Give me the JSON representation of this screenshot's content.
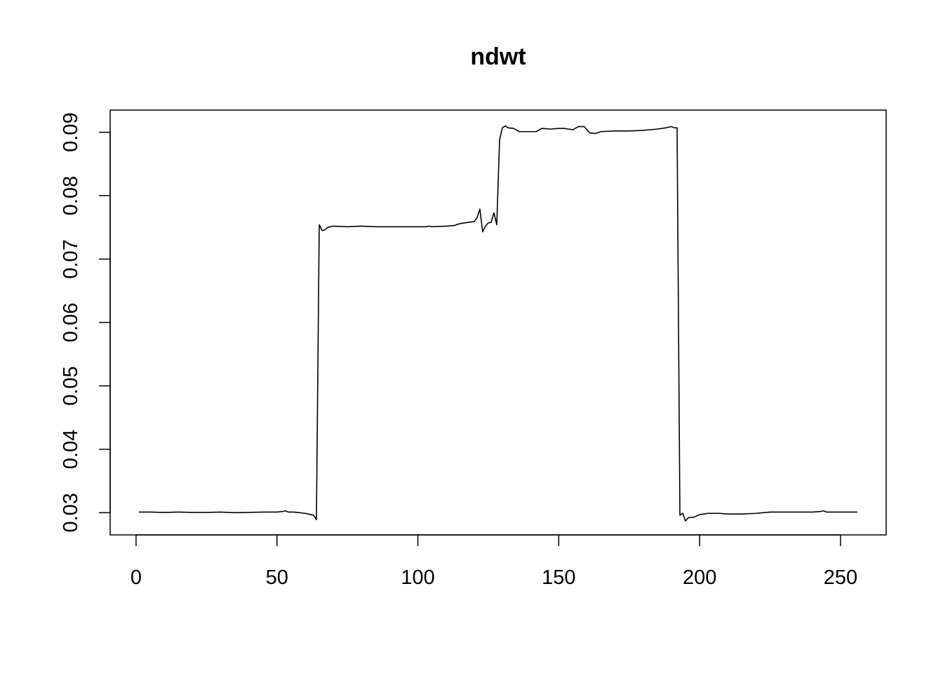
{
  "chart_data": {
    "type": "line",
    "title": "ndwt",
    "xlabel": "",
    "ylabel": "",
    "xlim": [
      -9.2,
      266.2
    ],
    "ylim": [
      0.0265,
      0.0935
    ],
    "x_ticks": [
      0,
      50,
      100,
      150,
      200,
      250
    ],
    "x_tick_labels": [
      "0",
      "50",
      "100",
      "150",
      "200",
      "250"
    ],
    "y_ticks": [
      0.03,
      0.04,
      0.05,
      0.06,
      0.07,
      0.08,
      0.09
    ],
    "y_tick_labels": [
      "0.03",
      "0.04",
      "0.05",
      "0.06",
      "0.07",
      "0.08",
      "0.09"
    ],
    "grid": false,
    "legend": "none",
    "series": [
      {
        "color": "#000000",
        "points": [
          [
            1,
            0.0301
          ],
          [
            5,
            0.0301
          ],
          [
            10,
            0.03005
          ],
          [
            15,
            0.0301
          ],
          [
            20,
            0.03005
          ],
          [
            25,
            0.03005
          ],
          [
            30,
            0.0301
          ],
          [
            35,
            0.03
          ],
          [
            40,
            0.03005
          ],
          [
            45,
            0.0301
          ],
          [
            50,
            0.0301
          ],
          [
            52,
            0.0302
          ],
          [
            53,
            0.0303
          ],
          [
            54,
            0.0301
          ],
          [
            56,
            0.0301
          ],
          [
            58,
            0.03
          ],
          [
            60,
            0.0299
          ],
          [
            62,
            0.0297
          ],
          [
            63,
            0.0296
          ],
          [
            64,
            0.0289
          ],
          [
            65,
            0.0754
          ],
          [
            66,
            0.0745
          ],
          [
            67,
            0.0746
          ],
          [
            68,
            0.075
          ],
          [
            70,
            0.0752
          ],
          [
            75,
            0.0751
          ],
          [
            80,
            0.0752
          ],
          [
            85,
            0.0751
          ],
          [
            90,
            0.0751
          ],
          [
            95,
            0.0751
          ],
          [
            100,
            0.0751
          ],
          [
            103,
            0.0751
          ],
          [
            104,
            0.0752
          ],
          [
            105,
            0.0751
          ],
          [
            110,
            0.0752
          ],
          [
            113,
            0.0753
          ],
          [
            115,
            0.0756
          ],
          [
            118,
            0.0758
          ],
          [
            120,
            0.0759
          ],
          [
            121,
            0.0765
          ],
          [
            122,
            0.0779
          ],
          [
            123,
            0.0743
          ],
          [
            124,
            0.0752
          ],
          [
            125,
            0.0757
          ],
          [
            126,
            0.0758
          ],
          [
            127,
            0.0773
          ],
          [
            128,
            0.0754
          ],
          [
            129,
            0.0888
          ],
          [
            130,
            0.0907
          ],
          [
            131,
            0.091
          ],
          [
            132,
            0.0907
          ],
          [
            134,
            0.0906
          ],
          [
            136,
            0.0901
          ],
          [
            140,
            0.0901
          ],
          [
            142,
            0.0901
          ],
          [
            144,
            0.0906
          ],
          [
            147,
            0.0905
          ],
          [
            150,
            0.0906
          ],
          [
            152,
            0.0906
          ],
          [
            155,
            0.0904
          ],
          [
            157,
            0.0909
          ],
          [
            159,
            0.0909
          ],
          [
            161,
            0.0899
          ],
          [
            163,
            0.0898
          ],
          [
            165,
            0.0901
          ],
          [
            170,
            0.0902
          ],
          [
            175,
            0.0902
          ],
          [
            180,
            0.0903
          ],
          [
            185,
            0.0905
          ],
          [
            188,
            0.0907
          ],
          [
            190,
            0.0909
          ],
          [
            191,
            0.0907
          ],
          [
            192,
            0.0907
          ],
          [
            193,
            0.0296
          ],
          [
            194,
            0.0299
          ],
          [
            195,
            0.0287
          ],
          [
            196,
            0.0292
          ],
          [
            198,
            0.0293
          ],
          [
            200,
            0.0297
          ],
          [
            203,
            0.0299
          ],
          [
            207,
            0.0299
          ],
          [
            210,
            0.0298
          ],
          [
            215,
            0.0298
          ],
          [
            220,
            0.0299
          ],
          [
            225,
            0.0301
          ],
          [
            230,
            0.0301
          ],
          [
            235,
            0.0301
          ],
          [
            240,
            0.0301
          ],
          [
            243,
            0.0302
          ],
          [
            244,
            0.0303
          ],
          [
            245,
            0.0301
          ],
          [
            248,
            0.0301
          ],
          [
            252,
            0.0301
          ],
          [
            256,
            0.0301
          ]
        ]
      }
    ]
  }
}
